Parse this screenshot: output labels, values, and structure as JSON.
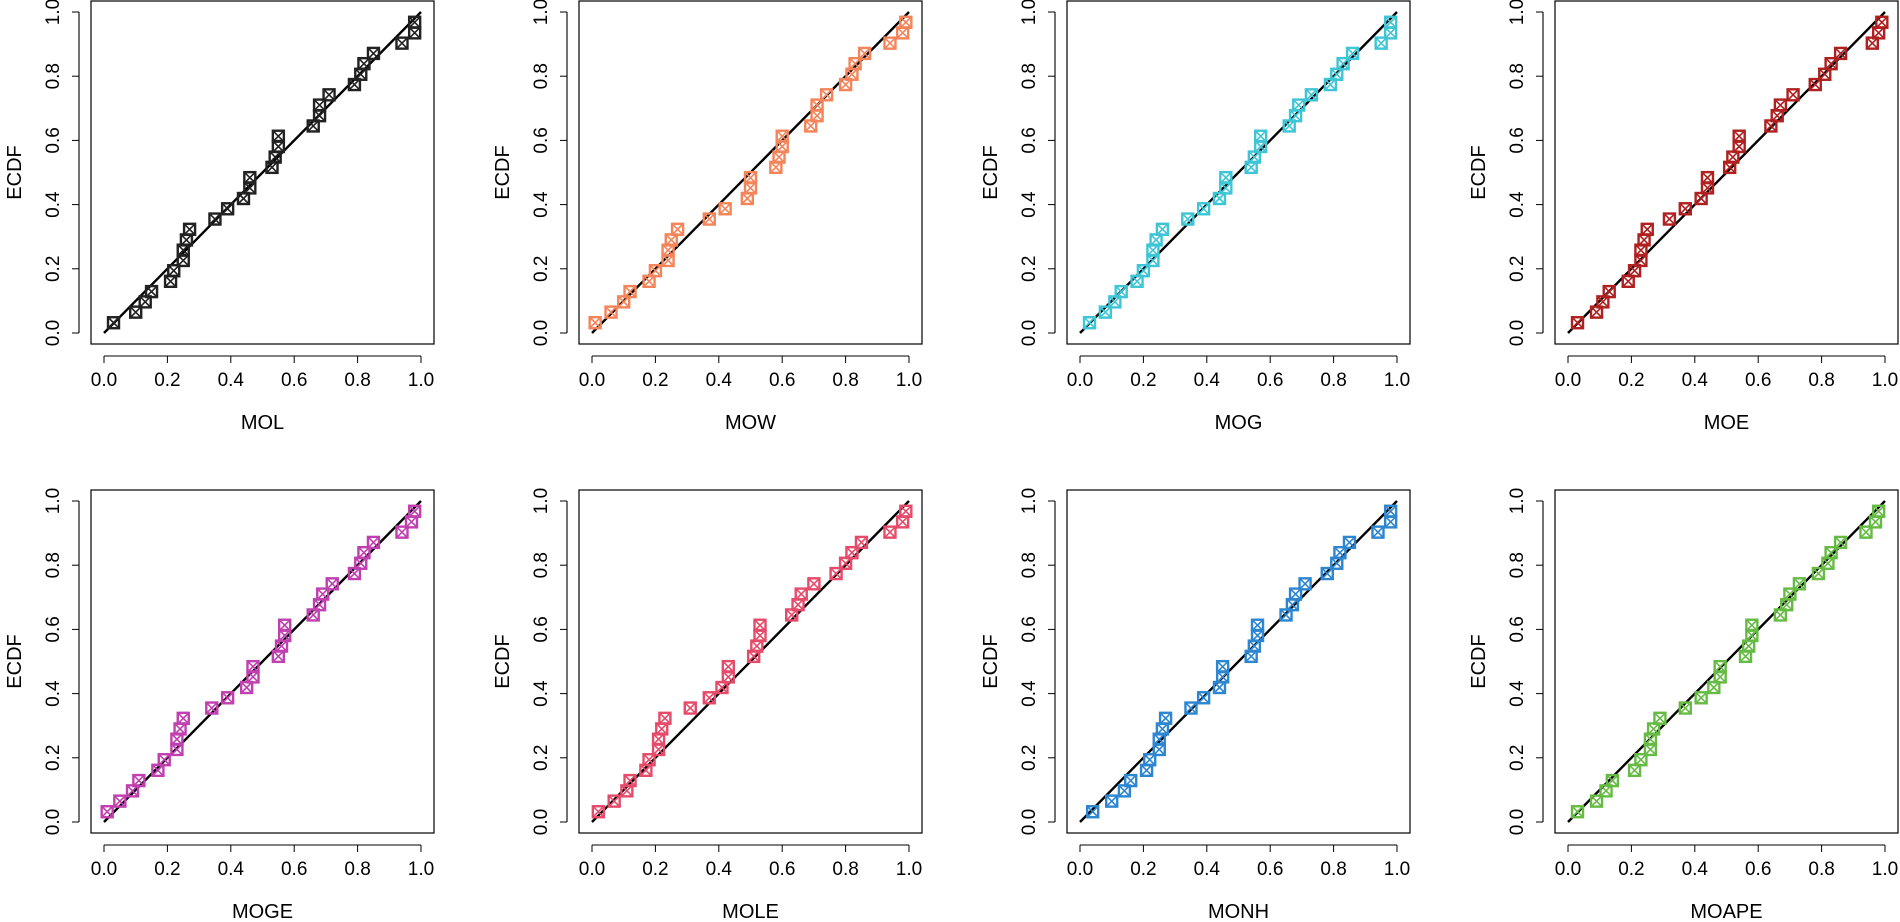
{
  "chart_data": {
    "type": "scatter",
    "description_layout": "2x4 grid of ECDF plots with identity line",
    "ylabel": "ECDF",
    "xlim": [
      0,
      1
    ],
    "ylim": [
      0,
      1
    ],
    "x_ticks": [
      0.0,
      0.2,
      0.4,
      0.6,
      0.8,
      1.0
    ],
    "y_ticks": [
      0.0,
      0.2,
      0.4,
      0.6,
      0.8,
      1.0
    ],
    "x_tick_labels": [
      "0.0",
      "0.2",
      "0.4",
      "0.6",
      "0.8",
      "1.0"
    ],
    "y_tick_labels": [
      "0.0",
      "0.2",
      "0.4",
      "0.6",
      "0.8",
      "1.0"
    ],
    "reference_line": {
      "from": [
        0,
        0
      ],
      "to": [
        1,
        1
      ]
    },
    "ecdf": [
      0.032,
      0.065,
      0.097,
      0.129,
      0.161,
      0.194,
      0.226,
      0.258,
      0.29,
      0.323,
      0.355,
      0.387,
      0.419,
      0.452,
      0.484,
      0.516,
      0.548,
      0.581,
      0.613,
      0.645,
      0.677,
      0.71,
      0.742,
      0.774,
      0.806,
      0.839,
      0.871,
      0.903,
      0.935,
      0.968
    ],
    "panels": [
      {
        "name": "MOL",
        "xlabel": "MOL",
        "color": "#222222",
        "x": [
          0.03,
          0.1,
          0.13,
          0.15,
          0.21,
          0.22,
          0.25,
          0.25,
          0.26,
          0.27,
          0.35,
          0.39,
          0.44,
          0.46,
          0.46,
          0.53,
          0.54,
          0.55,
          0.55,
          0.66,
          0.68,
          0.68,
          0.71,
          0.79,
          0.81,
          0.82,
          0.85,
          0.94,
          0.98,
          0.98
        ]
      },
      {
        "name": "MOW",
        "xlabel": "MOW",
        "color": "#F4845A",
        "x": [
          0.01,
          0.06,
          0.1,
          0.12,
          0.18,
          0.2,
          0.24,
          0.24,
          0.25,
          0.27,
          0.37,
          0.42,
          0.49,
          0.5,
          0.5,
          0.58,
          0.59,
          0.6,
          0.6,
          0.69,
          0.71,
          0.71,
          0.74,
          0.8,
          0.82,
          0.83,
          0.86,
          0.94,
          0.98,
          0.99
        ]
      },
      {
        "name": "MOG",
        "xlabel": "MOG",
        "color": "#3EC5D6",
        "x": [
          0.03,
          0.08,
          0.11,
          0.13,
          0.18,
          0.2,
          0.23,
          0.23,
          0.24,
          0.26,
          0.34,
          0.39,
          0.44,
          0.46,
          0.46,
          0.54,
          0.55,
          0.57,
          0.57,
          0.66,
          0.68,
          0.69,
          0.73,
          0.79,
          0.81,
          0.83,
          0.86,
          0.95,
          0.98,
          0.98
        ]
      },
      {
        "name": "MOE",
        "xlabel": "MOE",
        "color": "#B02020",
        "x": [
          0.03,
          0.09,
          0.11,
          0.13,
          0.19,
          0.21,
          0.23,
          0.23,
          0.24,
          0.25,
          0.32,
          0.37,
          0.42,
          0.44,
          0.44,
          0.51,
          0.52,
          0.54,
          0.54,
          0.64,
          0.66,
          0.67,
          0.71,
          0.78,
          0.81,
          0.83,
          0.86,
          0.96,
          0.98,
          0.99
        ]
      },
      {
        "name": "MOGE",
        "xlabel": "MOGE",
        "color": "#C040B0",
        "x": [
          0.01,
          0.05,
          0.09,
          0.11,
          0.17,
          0.19,
          0.23,
          0.23,
          0.24,
          0.25,
          0.34,
          0.39,
          0.45,
          0.47,
          0.47,
          0.55,
          0.56,
          0.57,
          0.57,
          0.66,
          0.68,
          0.69,
          0.72,
          0.79,
          0.81,
          0.82,
          0.85,
          0.94,
          0.97,
          0.98
        ]
      },
      {
        "name": "MOLE",
        "xlabel": "MOLE",
        "color": "#E54B6A",
        "x": [
          0.02,
          0.07,
          0.11,
          0.12,
          0.17,
          0.18,
          0.21,
          0.21,
          0.22,
          0.23,
          0.31,
          0.37,
          0.41,
          0.43,
          0.43,
          0.51,
          0.52,
          0.53,
          0.53,
          0.63,
          0.65,
          0.66,
          0.7,
          0.77,
          0.8,
          0.82,
          0.85,
          0.94,
          0.98,
          0.99
        ]
      },
      {
        "name": "MONH",
        "xlabel": "MONH",
        "color": "#2E86D0",
        "x": [
          0.04,
          0.1,
          0.14,
          0.16,
          0.21,
          0.22,
          0.25,
          0.25,
          0.26,
          0.27,
          0.35,
          0.39,
          0.44,
          0.45,
          0.45,
          0.54,
          0.55,
          0.56,
          0.56,
          0.65,
          0.67,
          0.68,
          0.71,
          0.78,
          0.81,
          0.82,
          0.85,
          0.94,
          0.98,
          0.98
        ]
      },
      {
        "name": "MOAPE",
        "xlabel": "MOAPE",
        "color": "#66BB44",
        "x": [
          0.03,
          0.09,
          0.12,
          0.14,
          0.21,
          0.23,
          0.26,
          0.26,
          0.27,
          0.29,
          0.37,
          0.42,
          0.46,
          0.48,
          0.48,
          0.56,
          0.57,
          0.58,
          0.58,
          0.67,
          0.69,
          0.7,
          0.73,
          0.79,
          0.82,
          0.83,
          0.86,
          0.94,
          0.97,
          0.98
        ]
      }
    ]
  }
}
